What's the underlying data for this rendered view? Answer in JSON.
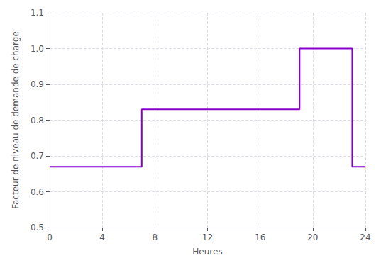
{
  "chart_data": {
    "type": "line",
    "xlabel": "Heures",
    "ylabel": "Facteur de niveau de demande de charge",
    "x": [
      0,
      7,
      7,
      19,
      19,
      23,
      23,
      24
    ],
    "values": [
      0.67,
      0.67,
      0.83,
      0.83,
      1.0,
      1.0,
      0.67,
      0.67
    ],
    "color": "#8800CC",
    "xlim": [
      0,
      24
    ],
    "ylim": [
      0.5,
      1.1
    ],
    "xticks": [
      0,
      4,
      8,
      12,
      16,
      20,
      24
    ],
    "yticks": [
      0.5,
      0.6,
      0.7,
      0.8,
      0.9,
      {
        "value": 1.0,
        "label": "1.0"
      },
      1.1
    ],
    "grid": true
  }
}
